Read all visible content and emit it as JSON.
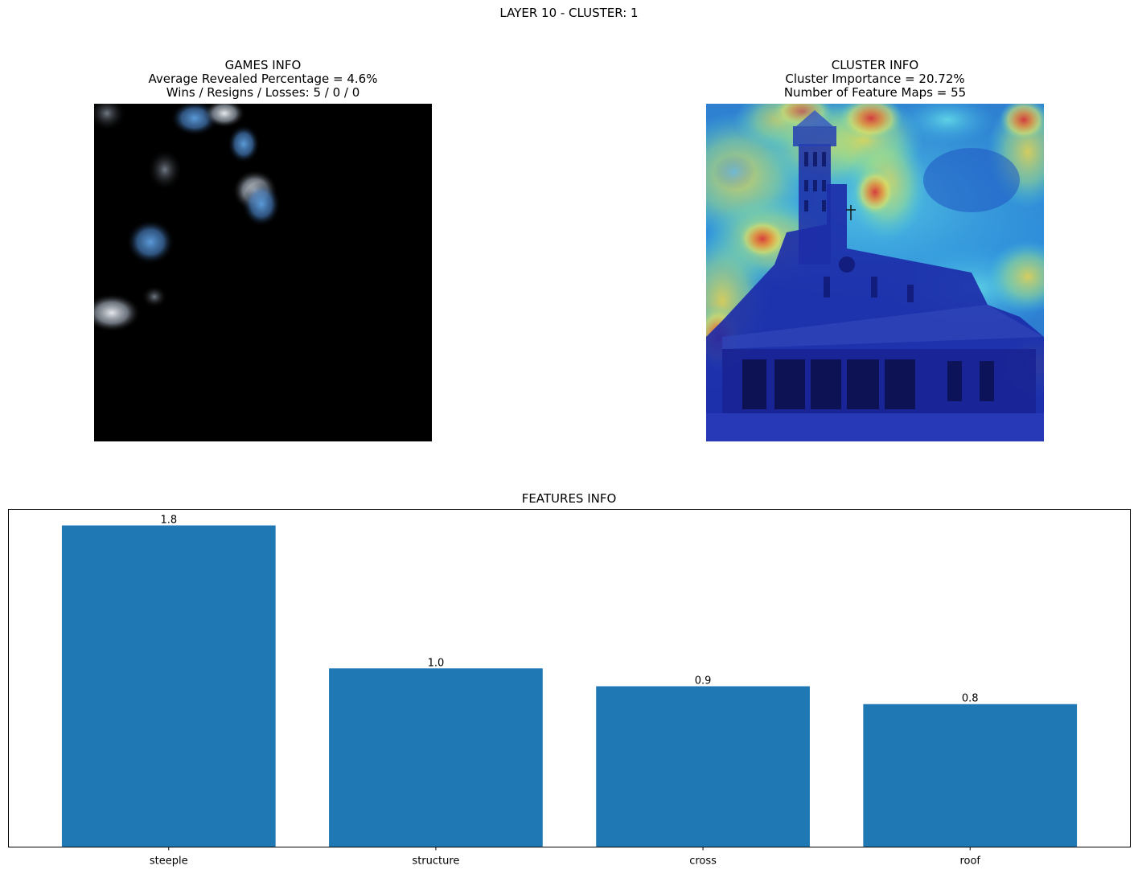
{
  "figure": {
    "suptitle": "LAYER 10 - CLUSTER: 1"
  },
  "games_info": {
    "title": "GAMES INFO",
    "line1": "Average Revealed Percentage = 4.6%",
    "line2": "Wins / Resigns / Losses: 5 / 0 / 0"
  },
  "cluster_info": {
    "title": "CLUSTER INFO",
    "line1": "Cluster Importance = 20.72%",
    "line2": "Number of Feature Maps = 55"
  },
  "chart_data": {
    "type": "bar",
    "title": "FEATURES INFO",
    "categories": [
      "steeple",
      "structure",
      "cross",
      "roof"
    ],
    "values": [
      1.8,
      1.0,
      0.9,
      0.8
    ],
    "value_labels": [
      "1.8",
      "1.0",
      "0.9",
      "0.8"
    ],
    "ylim": [
      0,
      1.89
    ],
    "bar_color": "#1f77b4",
    "grid": false,
    "yticks_visible": false
  }
}
